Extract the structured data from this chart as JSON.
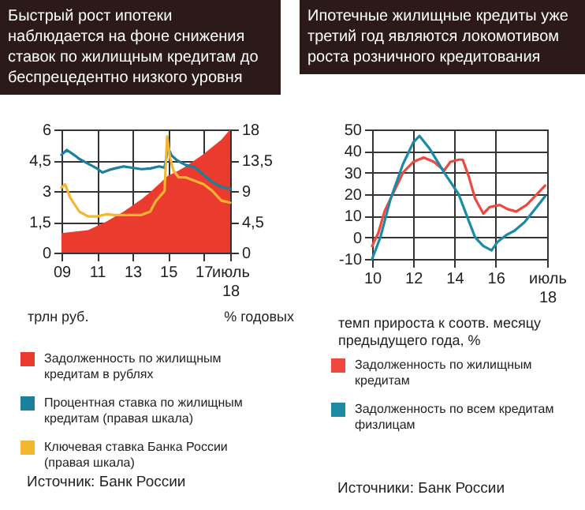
{
  "chart_data": [
    {
      "type": "area",
      "title": "Быстрый рост ипотеки наблюдается на фоне снижения ставок по жилищным кредитам до беспрецедентно низкого уровня",
      "ylabel": "трлн руб.",
      "y2label": "% годовых",
      "xlim": [
        2009,
        2018.5
      ],
      "xticks": [
        {
          "value": 2009,
          "label": "09"
        },
        {
          "value": 2011,
          "label": "11"
        },
        {
          "value": 2013,
          "label": "13"
        },
        {
          "value": 2015,
          "label": "15"
        },
        {
          "value": 2017,
          "label": "17"
        },
        {
          "value": 2018.5,
          "label": "июль 18"
        }
      ],
      "ylim": [
        0,
        6
      ],
      "yticks": [
        0,
        {
          "value": 1.5,
          "label": "1,5"
        },
        3,
        {
          "value": 4.5,
          "label": "4,5"
        },
        6
      ],
      "y2lim": [
        0,
        18
      ],
      "y2ticks": [
        0,
        {
          "value": 4.5,
          "label": "4,5"
        },
        9,
        {
          "value": 13.5,
          "label": "13,5"
        },
        18
      ],
      "grid": true,
      "legend": "bottom",
      "series": [
        {
          "name": "Задолженность по жилищным кредитам в рублях",
          "color": "#ea3b2e",
          "x": [
            2009,
            2009.5,
            2010,
            2010.5,
            2011,
            2011.5,
            2012,
            2012.5,
            2013,
            2013.5,
            2014,
            2014.5,
            2015,
            2015.5,
            2016,
            2016.5,
            2017,
            2017.5,
            2018,
            2018.5
          ],
          "values": [
            0.95,
            1.0,
            1.05,
            1.1,
            1.3,
            1.5,
            1.75,
            2.0,
            2.3,
            2.6,
            2.95,
            3.35,
            3.75,
            3.95,
            4.2,
            4.5,
            4.8,
            5.15,
            5.5,
            6.0
          ]
        },
        {
          "name": "Процентная ставка по жилищным кредитам (правая шкала)",
          "type": "line",
          "axis": "y2",
          "color": "#1b7f9e",
          "x": [
            2009,
            2009.3,
            2009.7,
            2010,
            2010.5,
            2011,
            2011.3,
            2011.7,
            2012,
            2012.5,
            2013,
            2013.5,
            2014,
            2014.5,
            2014.8,
            2015,
            2015.2,
            2015.5,
            2016,
            2016.5,
            2017,
            2017.5,
            2018,
            2018.5
          ],
          "values": [
            14.3,
            15.0,
            14.3,
            13.7,
            13.0,
            12.3,
            11.7,
            12.1,
            12.3,
            12.6,
            12.4,
            12.2,
            12.3,
            12.6,
            12.4,
            15.3,
            14.2,
            13.5,
            12.8,
            12.5,
            11.4,
            10.3,
            9.6,
            9.3
          ]
        },
        {
          "name": "Ключевая ставка Банка России (правая шкала)",
          "type": "line",
          "axis": "y2",
          "color": "#f4b531",
          "x": [
            2009,
            2009.2,
            2009.5,
            2010,
            2010.5,
            2011,
            2011.5,
            2012,
            2012.5,
            2013,
            2013.5,
            2014,
            2014.3,
            2014.8,
            2014.95,
            2015.1,
            2015.3,
            2015.6,
            2016,
            2016.5,
            2017,
            2017.5,
            2018,
            2018.5
          ],
          "values": [
            9.5,
            10.0,
            8.0,
            6.0,
            5.3,
            5.3,
            5.6,
            5.5,
            5.5,
            5.5,
            5.5,
            6.0,
            7.5,
            9.0,
            17.0,
            14.0,
            12.0,
            11.0,
            11.0,
            10.5,
            10.0,
            9.0,
            7.6,
            7.3
          ]
        }
      ],
      "annotations": [
        "Источник: Банк России"
      ]
    },
    {
      "type": "line",
      "title": "Ипотечные жилищные кредиты уже третий год являются локомотивом роста розничного кредитования",
      "ylabel": "темп прироста к соотв. месяцу предыдущего года, %",
      "xlim": [
        2010,
        2018.5
      ],
      "xticks": [
        {
          "value": 2010,
          "label": "10"
        },
        {
          "value": 2012,
          "label": "12"
        },
        {
          "value": 2014,
          "label": "14"
        },
        {
          "value": 2016,
          "label": "16"
        },
        {
          "value": 2018.5,
          "label": "июль 18"
        }
      ],
      "ylim": [
        -10,
        50
      ],
      "yticks": [
        -10,
        0,
        10,
        20,
        30,
        40,
        50
      ],
      "grid": true,
      "legend": "bottom",
      "series": [
        {
          "name": "Задолженность по жилищным кредитам",
          "color": "#f0473f",
          "x": [
            2010,
            2010.3,
            2010.6,
            2011,
            2011.5,
            2012,
            2012.5,
            2013,
            2013.5,
            2013.8,
            2014.2,
            2014.4,
            2014.7,
            2015,
            2015.4,
            2015.7,
            2016.2,
            2016.6,
            2017,
            2017.5,
            2018,
            2018.4
          ],
          "values": [
            -4,
            2,
            12,
            20,
            30,
            35,
            37,
            35,
            31,
            35,
            36,
            36,
            28,
            18,
            11,
            14,
            15,
            13,
            12,
            15,
            20,
            24
          ]
        },
        {
          "name": "Задолженность по всем кредитам физлицам",
          "color": "#1a8aa5",
          "x": [
            2010,
            2010.4,
            2010.9,
            2011.5,
            2012,
            2012.3,
            2012.8,
            2013.5,
            2014.2,
            2014.6,
            2015,
            2015.4,
            2015.8,
            2016.1,
            2016.5,
            2016.9,
            2017.4,
            2017.9,
            2018.4
          ],
          "values": [
            -10,
            0,
            18,
            34,
            44,
            47,
            41,
            30,
            20,
            10,
            0,
            -4,
            -6,
            -2,
            1,
            3,
            7,
            13,
            19
          ]
        }
      ],
      "annotations": [
        "Источники: Банк России"
      ]
    }
  ]
}
